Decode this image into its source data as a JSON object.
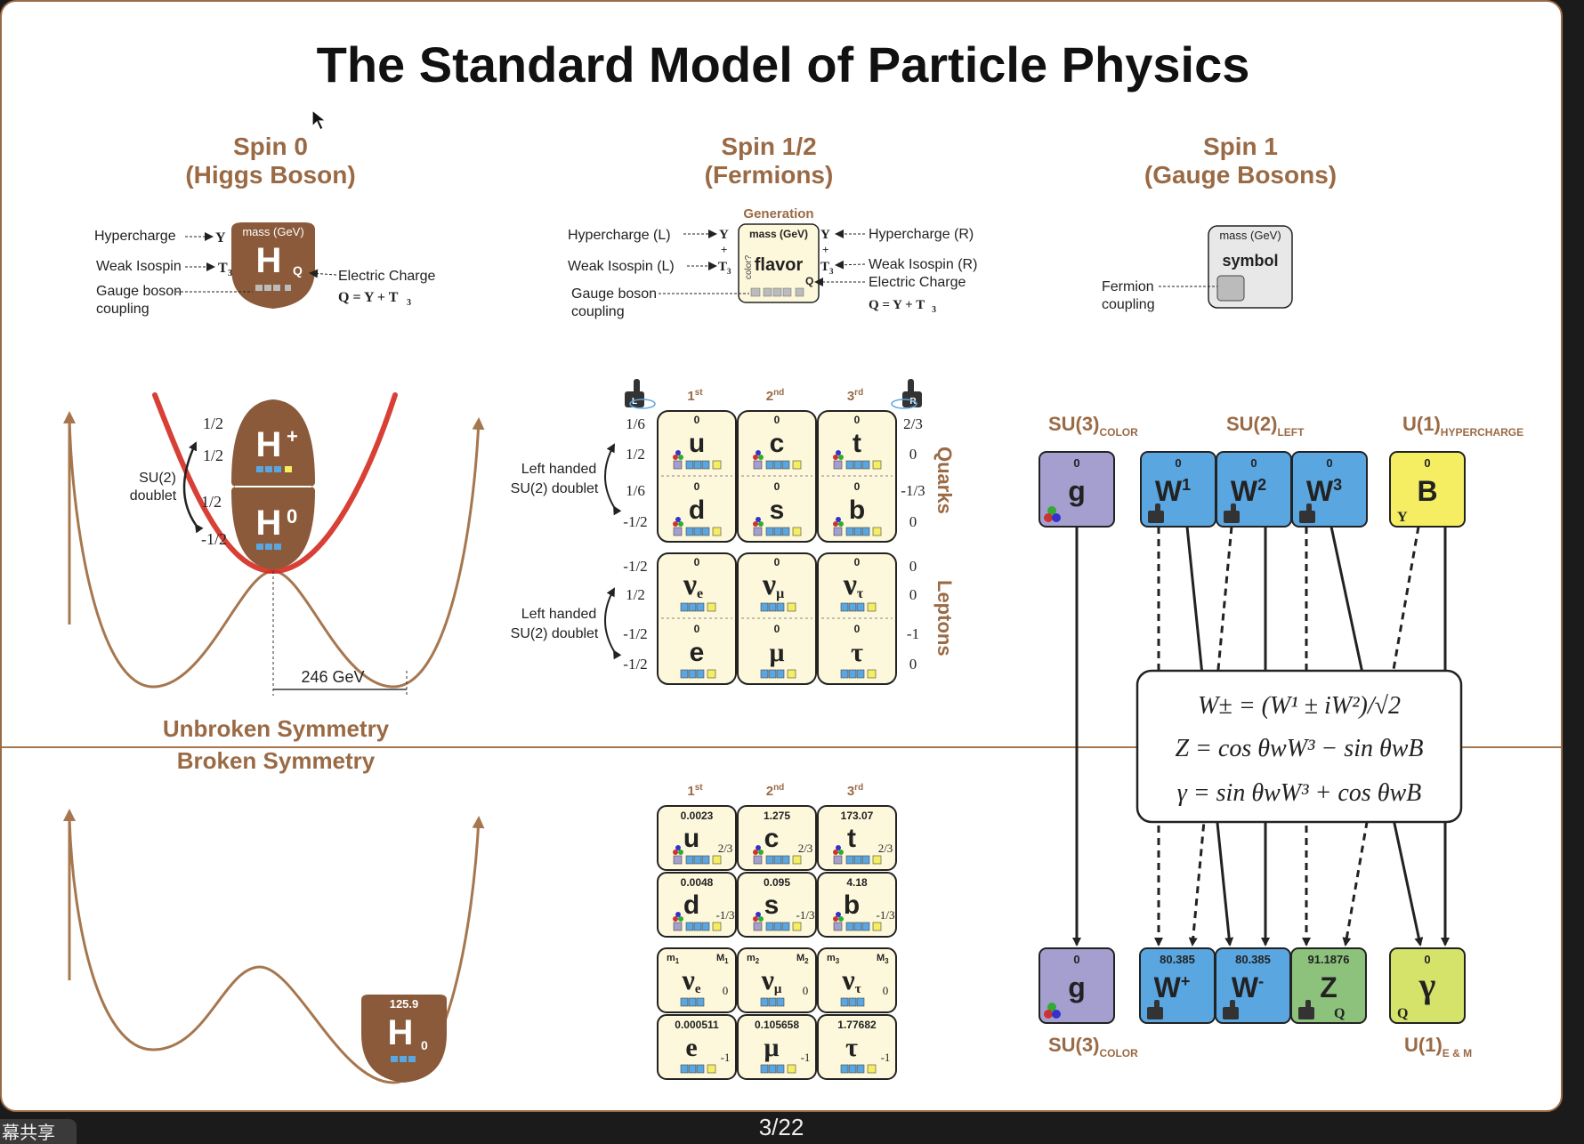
{
  "title": "The Standard Model of Particle Physics",
  "page_indicator": "3/22",
  "share_tab": "幕共享",
  "colors": {
    "brown": "#9a6a45",
    "higgs": "#8a5a3a",
    "quark_fill": "#fdf8dc",
    "gluon": "#a59fd0",
    "w_boson": "#5aa6e0",
    "b_boson": "#f5ee63",
    "z_boson": "#8cc27c",
    "photon": "#d6e36a",
    "potential": "#a6774f",
    "higgs_red": "#d42b20"
  },
  "spin0": {
    "heading": "Spin  0",
    "subheading": "(Higgs Boson)",
    "legend": {
      "hypercharge": "Hypercharge",
      "weak_isospin": "Weak Isospin",
      "gauge_line1": "Gauge boson",
      "gauge_line2": "coupling",
      "electric_charge": "Electric Charge",
      "formula": "Q = Y + T",
      "formula_sub": "3",
      "mass": "mass (GeV)",
      "symbol": "H",
      "q": "Q",
      "y": "Y",
      "t": "T",
      "t_sub": "3"
    }
  },
  "spin_half": {
    "heading": "Spin  1/2",
    "subheading": "(Fermions)",
    "legend": {
      "generation": "Generation",
      "hyper_l": "Hypercharge (L)",
      "weak_l": "Weak Isospin (L)",
      "gauge_line1": "Gauge boson",
      "gauge_line2": "coupling",
      "hyper_r": "Hypercharge (R)",
      "weak_r": "Weak Isospin (R)",
      "electric_charge": "Electric Charge",
      "formula": "Q = Y + T",
      "formula_sub": "3",
      "mass": "mass (GeV)",
      "flavor": "flavor",
      "color_q": "color?",
      "y": "Y",
      "t": "T",
      "t_sub": "3",
      "q": "Q",
      "plus": "+"
    }
  },
  "spin1": {
    "heading": "Spin  1",
    "subheading": "(Gauge Bosons)",
    "legend": {
      "mass": "mass (GeV)",
      "symbol": "symbol",
      "fermion_line1": "Fermion",
      "fermion_line2": "coupling"
    }
  },
  "higgs_doublet": {
    "plus": "H",
    "plus_sup": "+",
    "zero": "H",
    "zero_sup": "0",
    "label_line1": "SU(2)",
    "label_line2": "doublet",
    "charges": [
      "1/2",
      "1/2",
      "1/2",
      "-1/2"
    ],
    "vev": "246 GeV"
  },
  "symmetry": {
    "unbroken": "Unbroken Symmetry",
    "broken": "Broken Symmetry"
  },
  "higgs_broken": {
    "mass": "125.9",
    "symbol": "H",
    "charge": "0"
  },
  "generations": [
    "1",
    "2",
    "3"
  ],
  "generation_suffixes": [
    "st",
    "nd",
    "rd"
  ],
  "hand_labels": {
    "left": "L",
    "right": "R"
  },
  "unbroken_fermions": {
    "left_handed_line1": "Left handed",
    "left_handed_line2": "SU(2) doublet",
    "quarks_label": "Quarks",
    "leptons_label": "Leptons",
    "rows": [
      {
        "symbols": [
          "u",
          "c",
          "t"
        ],
        "mass": "0",
        "left": "1/6",
        "right": "2/3"
      },
      {
        "symbols": [
          "d",
          "s",
          "b"
        ],
        "mass": "0",
        "left": "1/6",
        "right": "-1/3"
      },
      {
        "symbols": [
          "ν",
          "ν",
          "ν"
        ],
        "subs": [
          "e",
          "μ",
          "τ"
        ],
        "mass": "0",
        "left": "-1/2",
        "right": "0"
      },
      {
        "symbols": [
          "e",
          "μ",
          "τ"
        ],
        "mass": "0",
        "left": "-1/2",
        "right": "-1"
      }
    ],
    "isospin": [
      "1/2",
      "-1/2",
      "1/2",
      "-1/2"
    ],
    "right_extra": [
      "0",
      "0"
    ]
  },
  "broken_fermions": {
    "rows": [
      {
        "masses": [
          "0.0023",
          "1.275",
          "173.07"
        ],
        "symbols": [
          "u",
          "c",
          "t"
        ],
        "charge": "2/3"
      },
      {
        "masses": [
          "0.0048",
          "0.095",
          "4.18"
        ],
        "symbols": [
          "d",
          "s",
          "b"
        ],
        "charge": "-1/3"
      },
      {
        "masses": [
          "",
          "",
          ""
        ],
        "symbols": [
          "ν",
          "ν",
          "ν"
        ],
        "subs": [
          "e",
          "μ",
          "τ"
        ],
        "charge": "0",
        "m_labels": [
          "m",
          "m",
          "m"
        ],
        "M_labels": [
          "M",
          "M",
          "M"
        ]
      },
      {
        "masses": [
          "0.000511",
          "0.105658",
          "1.77682"
        ],
        "symbols": [
          "e",
          "μ",
          "τ"
        ],
        "charge": "-1"
      }
    ]
  },
  "gauge": {
    "su3_color": "SU(3)",
    "color_sub": "COLOR",
    "su2_left": "SU(2)",
    "left_sub": "LEFT",
    "u1_hyper": "U(1)",
    "hyper_sub": "HYPERCHARGE",
    "u1_em": "U(1)",
    "em_sub": "E & M",
    "unbroken": [
      {
        "symbol": "g",
        "mass": "0"
      },
      {
        "symbol": "W",
        "sup": "1",
        "mass": "0"
      },
      {
        "symbol": "W",
        "sup": "2",
        "mass": "0"
      },
      {
        "symbol": "W",
        "sup": "3",
        "mass": "0"
      },
      {
        "symbol": "B",
        "mass": "0",
        "corner": "Y"
      }
    ],
    "broken": [
      {
        "symbol": "g",
        "mass": "0"
      },
      {
        "symbol": "W",
        "sup": "+",
        "mass": "80.385"
      },
      {
        "symbol": "W",
        "sup": "-",
        "mass": "80.385"
      },
      {
        "symbol": "Z",
        "mass": "91.1876",
        "corner": "Q"
      },
      {
        "symbol": "γ",
        "mass": "0",
        "corner": "Q"
      }
    ],
    "equations": [
      "W± = (W¹ ± iW²)/√2",
      "Z = cos θwW³ − sin θwB",
      "γ = sin θwW³ + cos θwB"
    ]
  }
}
